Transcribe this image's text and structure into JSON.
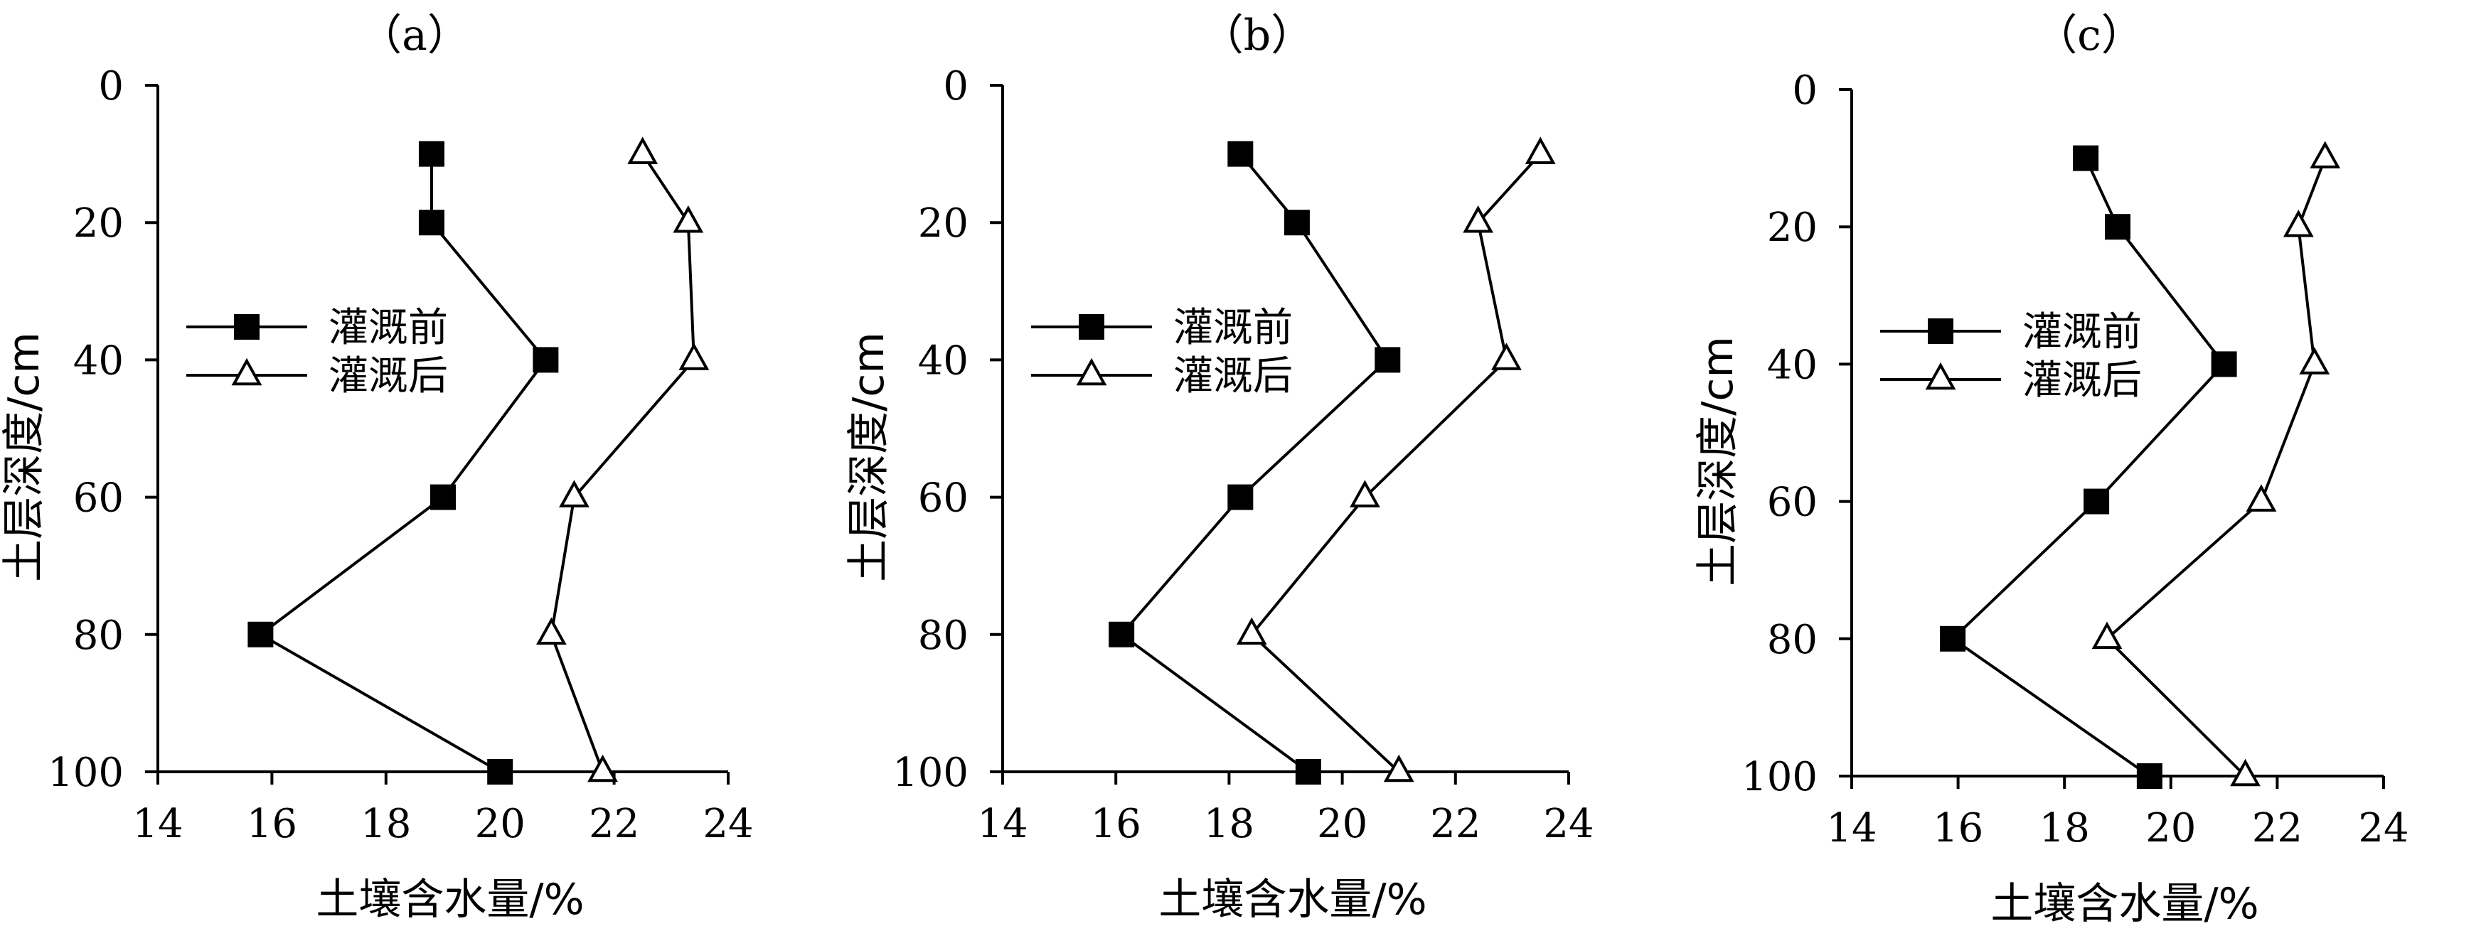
{
  "chart_data": [
    {
      "type": "line",
      "panel_label": "（a）",
      "xlabel": "土壤含水量/%",
      "ylabel": "土层深度/cm",
      "xlim": [
        14,
        24
      ],
      "ylim": [
        0,
        100
      ],
      "y_inverted": true,
      "x_ticks": [
        14,
        16,
        18,
        20,
        22,
        24
      ],
      "y_ticks": [
        0,
        20,
        40,
        60,
        80,
        100
      ],
      "legend": "left-middle",
      "grid": false,
      "series": [
        {
          "name": "灌溉前",
          "marker": "filled-square",
          "points": [
            [
              18.8,
              10
            ],
            [
              18.8,
              20
            ],
            [
              20.8,
              40
            ],
            [
              19.0,
              60
            ],
            [
              15.8,
              80
            ],
            [
              20.0,
              100
            ]
          ]
        },
        {
          "name": "灌溉后",
          "marker": "open-triangle",
          "points": [
            [
              22.5,
              10
            ],
            [
              23.3,
              20
            ],
            [
              23.4,
              40
            ],
            [
              21.3,
              60
            ],
            [
              20.9,
              80
            ],
            [
              21.8,
              100
            ]
          ]
        }
      ]
    },
    {
      "type": "line",
      "panel_label": "（b）",
      "xlabel": "土壤含水量/%",
      "ylabel": "土层深度/cm",
      "xlim": [
        14,
        24
      ],
      "ylim": [
        0,
        100
      ],
      "y_inverted": true,
      "x_ticks": [
        14,
        16,
        18,
        20,
        22,
        24
      ],
      "y_ticks": [
        0,
        20,
        40,
        60,
        80,
        100
      ],
      "legend": "left-middle",
      "grid": false,
      "series": [
        {
          "name": "灌溉前",
          "marker": "filled-square",
          "points": [
            [
              18.2,
              10
            ],
            [
              19.2,
              20
            ],
            [
              20.8,
              40
            ],
            [
              18.2,
              60
            ],
            [
              16.1,
              80
            ],
            [
              19.4,
              100
            ]
          ]
        },
        {
          "name": "灌溉后",
          "marker": "open-triangle",
          "points": [
            [
              23.5,
              10
            ],
            [
              22.4,
              20
            ],
            [
              22.9,
              40
            ],
            [
              20.4,
              60
            ],
            [
              18.4,
              80
            ],
            [
              21.0,
              100
            ]
          ]
        }
      ]
    },
    {
      "type": "line",
      "panel_label": "（c）",
      "xlabel": "土壤含水量/%",
      "ylabel": "土层深度/cm",
      "xlim": [
        14,
        24
      ],
      "ylim": [
        0,
        100
      ],
      "y_inverted": true,
      "x_ticks": [
        14,
        16,
        18,
        20,
        22,
        24
      ],
      "y_ticks": [
        0,
        20,
        40,
        60,
        80,
        100
      ],
      "legend": "left-middle",
      "grid": false,
      "series": [
        {
          "name": "灌溉前",
          "marker": "filled-square",
          "points": [
            [
              18.4,
              10
            ],
            [
              19.0,
              20
            ],
            [
              21.0,
              40
            ],
            [
              18.6,
              60
            ],
            [
              15.9,
              80
            ],
            [
              19.6,
              100
            ]
          ]
        },
        {
          "name": "灌溉后",
          "marker": "open-triangle",
          "points": [
            [
              22.9,
              10
            ],
            [
              22.4,
              20
            ],
            [
              22.7,
              40
            ],
            [
              21.7,
              60
            ],
            [
              18.8,
              80
            ],
            [
              21.4,
              100
            ]
          ]
        }
      ]
    }
  ]
}
